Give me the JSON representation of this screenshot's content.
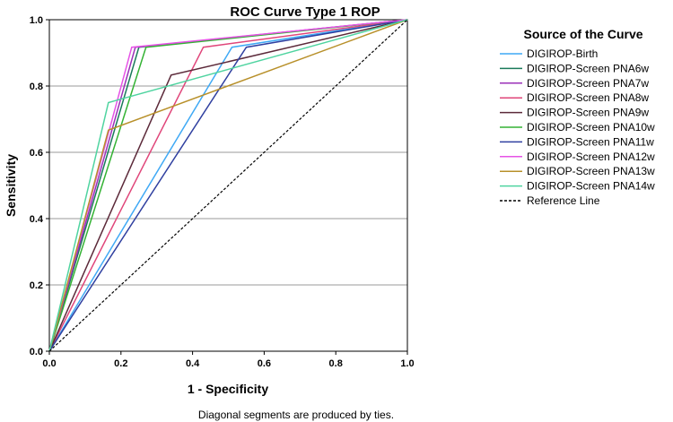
{
  "chart_data": {
    "type": "line",
    "title": "ROC Curve Type 1 ROP",
    "xlabel": "1 - Specificity",
    "ylabel": "Sensitivity",
    "xlim": [
      0.0,
      1.0
    ],
    "ylim": [
      0.0,
      1.0
    ],
    "x_ticks": [
      "0.0",
      "0.2",
      "0.4",
      "0.6",
      "0.8",
      "1.0"
    ],
    "y_ticks": [
      "0.0",
      "0.2",
      "0.4",
      "0.6",
      "0.8",
      "1.0"
    ],
    "grid": "horizontal",
    "legend_title": "Source of the Curve",
    "legend_position": "right",
    "footnote": "Diagonal segments are produced by ties.",
    "series": [
      {
        "name": "DIGIROP-Birth",
        "color": "#3fa9f5",
        "points": [
          [
            0,
            0
          ],
          [
            0.51,
            0.917
          ],
          [
            1,
            1
          ]
        ]
      },
      {
        "name": "DIGIROP-Screen PNA6w",
        "color": "#1a7a5a",
        "points": [
          [
            0,
            0
          ],
          [
            0.25,
            0.917
          ],
          [
            1,
            1
          ]
        ]
      },
      {
        "name": "DIGIROP-Screen PNA7w",
        "color": "#9b30b8",
        "points": [
          [
            0,
            0
          ],
          [
            0.24,
            0.917
          ],
          [
            1,
            1
          ]
        ]
      },
      {
        "name": "DIGIROP-Screen PNA8w",
        "color": "#e0467a",
        "points": [
          [
            0,
            0
          ],
          [
            0.43,
            0.917
          ],
          [
            1,
            1
          ]
        ]
      },
      {
        "name": "DIGIROP-Screen PNA9w",
        "color": "#5c2a3a",
        "points": [
          [
            0,
            0
          ],
          [
            0.34,
            0.833
          ],
          [
            1,
            1
          ]
        ]
      },
      {
        "name": "DIGIROP-Screen PNA10w",
        "color": "#33b233",
        "points": [
          [
            0,
            0
          ],
          [
            0.27,
            0.917
          ],
          [
            1,
            1
          ]
        ]
      },
      {
        "name": "DIGIROP-Screen PNA11w",
        "color": "#3040a0",
        "points": [
          [
            0,
            0
          ],
          [
            0.55,
            0.917
          ],
          [
            1,
            1
          ]
        ]
      },
      {
        "name": "DIGIROP-Screen PNA12w",
        "color": "#e653e6",
        "points": [
          [
            0,
            0
          ],
          [
            0.23,
            0.917
          ],
          [
            1,
            1
          ]
        ]
      },
      {
        "name": "DIGIROP-Screen PNA13w",
        "color": "#b8902a",
        "points": [
          [
            0,
            0
          ],
          [
            0.165,
            0.667
          ],
          [
            1,
            1
          ]
        ]
      },
      {
        "name": "DIGIROP-Screen PNA14w",
        "color": "#4fd4a0",
        "points": [
          [
            0,
            0
          ],
          [
            0.165,
            0.75
          ],
          [
            1,
            1
          ]
        ]
      },
      {
        "name": "Reference Line",
        "color": "#000000",
        "dashed": true,
        "points": [
          [
            0,
            0
          ],
          [
            1,
            1
          ]
        ]
      }
    ]
  }
}
